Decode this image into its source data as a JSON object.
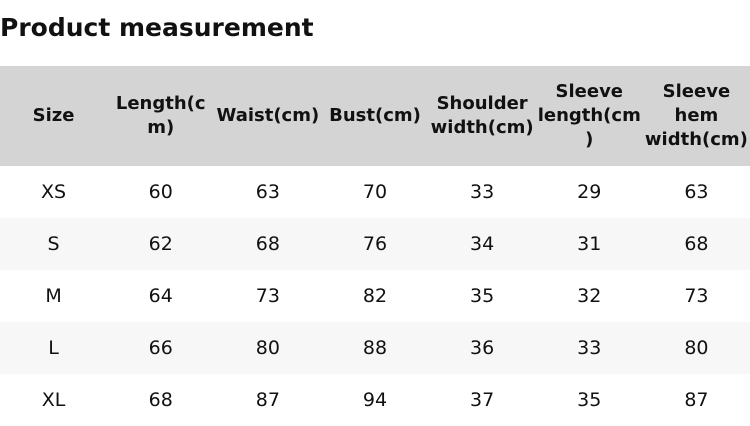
{
  "title": "Product measurement",
  "table": {
    "headers": [
      "Size",
      "Length(cm)",
      "Waist(cm)",
      "Bust(cm)",
      "Shoulder width(cm)",
      "Sleeve length(cm)",
      "Sleeve hem width(cm)"
    ],
    "rows": [
      [
        "XS",
        "60",
        "63",
        "70",
        "33",
        "29",
        "63"
      ],
      [
        "S",
        "62",
        "68",
        "76",
        "34",
        "31",
        "68"
      ],
      [
        "M",
        "64",
        "73",
        "82",
        "35",
        "32",
        "73"
      ],
      [
        "L",
        "66",
        "80",
        "88",
        "36",
        "33",
        "80"
      ],
      [
        "XL",
        "68",
        "87",
        "94",
        "37",
        "35",
        "87"
      ]
    ]
  }
}
